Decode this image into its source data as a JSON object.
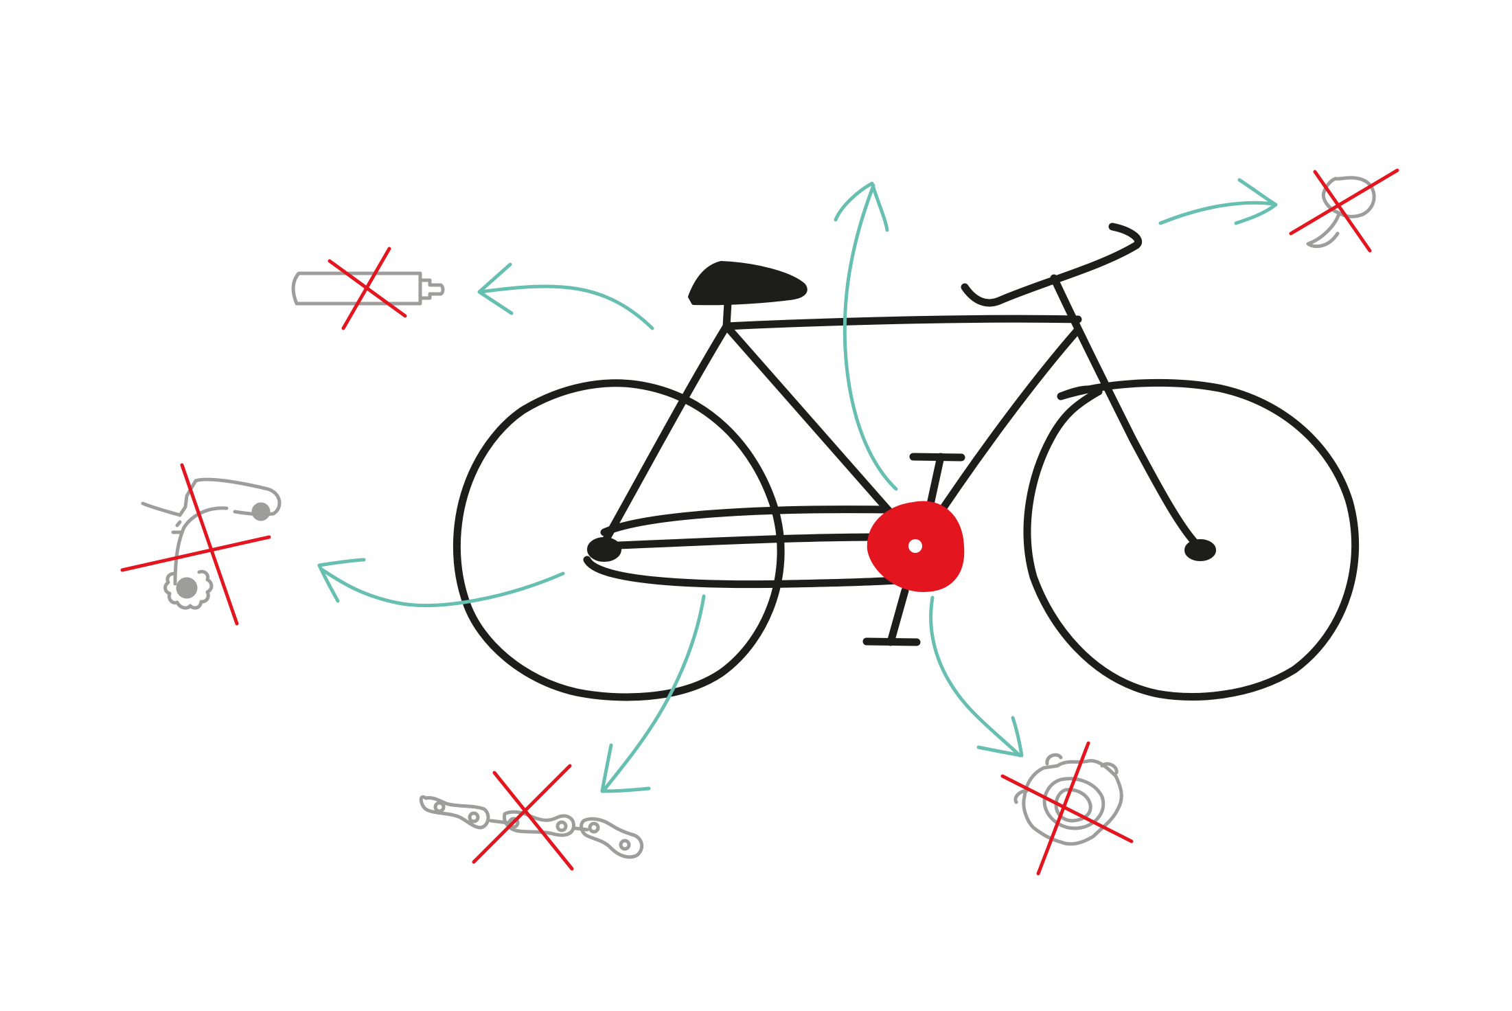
{
  "colors": {
    "ink": "#1d1d1b",
    "red": "#e3161f",
    "teal": "#66bfb0",
    "grey": "#9d9d9c",
    "background": "#ffffff"
  },
  "bicycle": {
    "highlight": "bottom-bracket",
    "highlight_color": "#e3161f"
  },
  "removed_parts": [
    {
      "name": "seatpost-shock",
      "icon": "shock-absorber-icon",
      "crossed_out": true
    },
    {
      "name": "rear-derailleur",
      "icon": "derailleur-icon",
      "crossed_out": true
    },
    {
      "name": "chain",
      "icon": "chain-icon",
      "crossed_out": true
    },
    {
      "name": "cassette",
      "icon": "cassette-icon",
      "crossed_out": true
    },
    {
      "name": "bell",
      "icon": "bell-icon",
      "crossed_out": true
    }
  ]
}
